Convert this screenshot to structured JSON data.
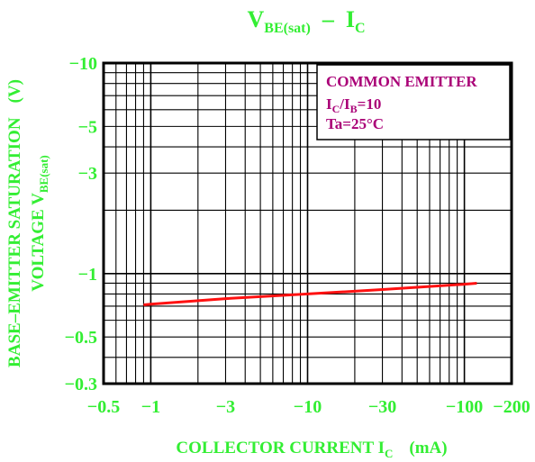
{
  "chart_data": {
    "type": "line",
    "title": {
      "main": "V",
      "main_sub": "BE(sat)",
      "rest": "  –  I",
      "rest_sub": "C"
    },
    "xlabel": {
      "main": "COLLECTOR CURRENT I",
      "sub": "C",
      "unit": "(mA)"
    },
    "ylabel": {
      "line1": "BASE–EMITTER SATURATION",
      "line1_unit": "(V)",
      "line2": "VOLTAGE V",
      "line2_sub": "BE(sat)"
    },
    "x_scale": "log",
    "y_scale": "log",
    "xlim": [
      -0.5,
      -200
    ],
    "ylim": [
      -0.3,
      -10
    ],
    "x_ticks": [
      {
        "value": -0.5,
        "label": "−0.5"
      },
      {
        "value": -1,
        "label": "−1"
      },
      {
        "value": -3,
        "label": "−3"
      },
      {
        "value": -10,
        "label": "−10"
      },
      {
        "value": -30,
        "label": "−30"
      },
      {
        "value": -100,
        "label": "−100"
      },
      {
        "value": -200,
        "label": "−200"
      }
    ],
    "y_ticks": [
      {
        "value": -0.3,
        "label": "−0.3"
      },
      {
        "value": -0.5,
        "label": "−0.5"
      },
      {
        "value": -1,
        "label": "−1"
      },
      {
        "value": -3,
        "label": "−3"
      },
      {
        "value": -5,
        "label": "−5"
      },
      {
        "value": -10,
        "label": "−10"
      }
    ],
    "annotation": {
      "line1": "COMMON EMITTER",
      "line2_a": "I",
      "line2_a_sub": "C",
      "line2_b": "/I",
      "line2_b_sub": "B",
      "line2_c": "=10",
      "line3": "Ta=25°C"
    },
    "grid": true,
    "series": [
      {
        "x": [
          -0.9,
          -1,
          -3,
          -10,
          -30,
          -100,
          -120
        ],
        "y": [
          -0.71,
          -0.715,
          -0.76,
          -0.8,
          -0.84,
          -0.89,
          -0.9
        ]
      }
    ],
    "colors": {
      "text": "#33ee33",
      "annotation": "#aa0077",
      "curve": "#ff1111",
      "grid": "#000000"
    }
  }
}
